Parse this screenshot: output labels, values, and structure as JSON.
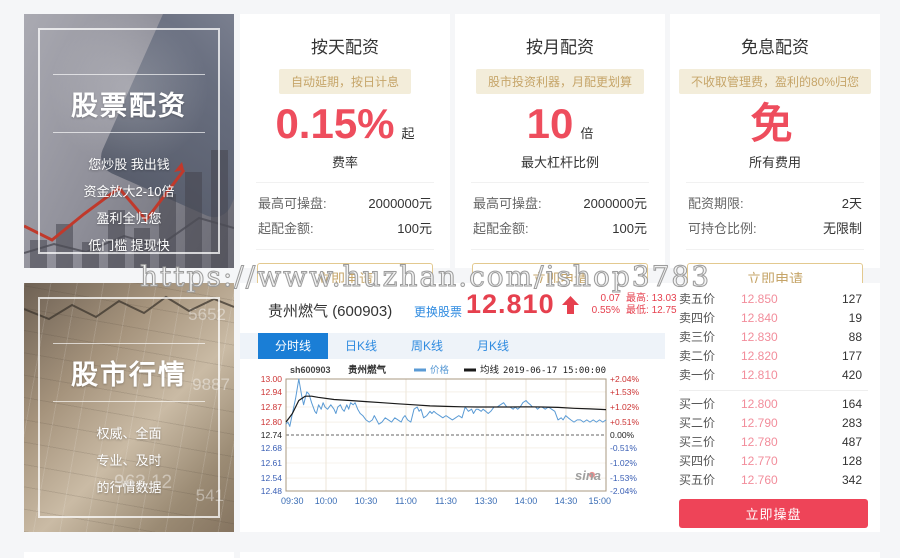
{
  "watermark": "https://www.huzhan.com/ishop3783",
  "banners": {
    "stock_financing": {
      "title": "股票配资",
      "lines": [
        "您炒股 我出钱",
        "资金放大2-10倍",
        "盈利全归您",
        "低门槛 提现快"
      ]
    },
    "market_quotes": {
      "title": "股市行情",
      "lines": [
        "权威、全面",
        "专业、及时",
        "的行情数据"
      ],
      "bg_numbers": [
        "5652",
        "9887",
        "963.12",
        "541"
      ]
    }
  },
  "plans": [
    {
      "title": "按天配资",
      "badge": "自动延期，按日计息",
      "value": "0.15%",
      "value_suffix": "起",
      "value_label": "费率",
      "rows": [
        {
          "label": "最高可操盘:",
          "value": "2000000元"
        },
        {
          "label": "起配金额:",
          "value": "100元"
        }
      ],
      "button": "立即申请"
    },
    {
      "title": "按月配资",
      "badge": "股市投资利器，月配更划算",
      "value": "10",
      "value_suffix": "倍",
      "value_label": "最大杠杆比例",
      "rows": [
        {
          "label": "最高可操盘:",
          "value": "2000000元"
        },
        {
          "label": "起配金额:",
          "value": "100元"
        }
      ],
      "button": "立即申请"
    },
    {
      "title": "免息配资",
      "badge": "不收取管理费，盈利的80%归您",
      "value": "免",
      "value_suffix": "",
      "value_label": "所有费用",
      "rows": [
        {
          "label": "配资期限:",
          "value": "2天"
        },
        {
          "label": "可持仓比例:",
          "value": "无限制"
        }
      ],
      "button": "立即申请"
    }
  ],
  "stock": {
    "name": "贵州燃气",
    "code": "(600903)",
    "change_stock_link": "更换股票",
    "price": "12.810",
    "change": "0.07",
    "change_pct": "0.55%",
    "high_label": "最高:",
    "high": "13.03",
    "low_label": "最低:",
    "low": "12.75",
    "tabs": [
      {
        "label": "分时线",
        "active": true
      },
      {
        "label": "日K线",
        "active": false
      },
      {
        "label": "周K线",
        "active": false
      },
      {
        "label": "月K线",
        "active": false
      }
    ],
    "operate_button": "立即操盘",
    "accent_red": "#e6404e",
    "accent_blue": "#1a7ed6"
  },
  "order_book": {
    "sell": [
      {
        "label": "卖五价",
        "price": "12.850",
        "volume": "127"
      },
      {
        "label": "卖四价",
        "price": "12.840",
        "volume": "19"
      },
      {
        "label": "卖三价",
        "price": "12.830",
        "volume": "88"
      },
      {
        "label": "卖二价",
        "price": "12.820",
        "volume": "177"
      },
      {
        "label": "卖一价",
        "price": "12.810",
        "volume": "420"
      }
    ],
    "buy": [
      {
        "label": "买一价",
        "price": "12.800",
        "volume": "164"
      },
      {
        "label": "买二价",
        "price": "12.790",
        "volume": "283"
      },
      {
        "label": "买三价",
        "price": "12.780",
        "volume": "487"
      },
      {
        "label": "买四价",
        "price": "12.770",
        "volume": "128"
      },
      {
        "label": "买五价",
        "price": "12.760",
        "volume": "342"
      }
    ]
  },
  "chart_data": {
    "type": "line",
    "title": "sh600903 贵州燃气 分时图",
    "symbol": "sh600903",
    "name": "贵州燃气",
    "timestamp": "2019-06-17 15:00:00",
    "legend": [
      {
        "name": "价格",
        "color": "#5b9bd5"
      },
      {
        "name": "均线",
        "color": "#1a1a1a"
      }
    ],
    "legend_position": "top",
    "grid": true,
    "watermark": "sina",
    "ylim": [
      12.48,
      13.0
    ],
    "baseline": 12.74,
    "y_left_ticks": [
      "13.00",
      "12.94",
      "12.87",
      "12.80",
      "12.74",
      "12.68",
      "12.61",
      "12.54",
      "12.48"
    ],
    "y_right_ticks": [
      "+2.04%",
      "+1.53%",
      "+1.02%",
      "+0.51%",
      "0.00%",
      "-0.51%",
      "-1.02%",
      "-1.53%",
      "-2.04%"
    ],
    "x_ticks": [
      "09:30",
      "10:00",
      "10:30",
      "11:00",
      "11:30",
      "13:30",
      "14:00",
      "14:30",
      "15:00"
    ],
    "xlabel": "",
    "ylabel": "",
    "price_series": [
      [
        0.0,
        12.79
      ],
      [
        0.006,
        12.8
      ],
      [
        0.012,
        12.78
      ],
      [
        0.02,
        12.84
      ],
      [
        0.03,
        12.91
      ],
      [
        0.04,
        13.0
      ],
      [
        0.048,
        12.93
      ],
      [
        0.055,
        12.88
      ],
      [
        0.065,
        12.94
      ],
      [
        0.072,
        12.93
      ],
      [
        0.08,
        12.89
      ],
      [
        0.09,
        12.85
      ],
      [
        0.095,
        12.84
      ],
      [
        0.102,
        12.88
      ],
      [
        0.11,
        12.86
      ],
      [
        0.116,
        12.89
      ],
      [
        0.122,
        12.87
      ],
      [
        0.13,
        12.86
      ],
      [
        0.14,
        12.88
      ],
      [
        0.15,
        12.86
      ],
      [
        0.156,
        12.84
      ],
      [
        0.162,
        12.87
      ],
      [
        0.17,
        12.88
      ],
      [
        0.176,
        12.86
      ],
      [
        0.182,
        12.85
      ],
      [
        0.19,
        12.88
      ],
      [
        0.196,
        12.86
      ],
      [
        0.202,
        12.89
      ],
      [
        0.21,
        12.88
      ],
      [
        0.216,
        12.89
      ],
      [
        0.224,
        12.86
      ],
      [
        0.232,
        12.84
      ],
      [
        0.24,
        12.83
      ],
      [
        0.25,
        12.81
      ],
      [
        0.26,
        12.8
      ],
      [
        0.27,
        12.81
      ],
      [
        0.276,
        12.83
      ],
      [
        0.283,
        12.81
      ],
      [
        0.29,
        12.79
      ],
      [
        0.3,
        12.8
      ],
      [
        0.31,
        12.82
      ],
      [
        0.32,
        12.81
      ],
      [
        0.33,
        12.8
      ],
      [
        0.34,
        12.82
      ],
      [
        0.35,
        12.81
      ],
      [
        0.36,
        12.8
      ],
      [
        0.366,
        12.82
      ],
      [
        0.372,
        12.83
      ],
      [
        0.38,
        12.81
      ],
      [
        0.39,
        12.8
      ],
      [
        0.4,
        12.86
      ],
      [
        0.41,
        12.87
      ],
      [
        0.416,
        12.85
      ],
      [
        0.422,
        12.86
      ],
      [
        0.43,
        12.82
      ],
      [
        0.44,
        12.83
      ],
      [
        0.45,
        12.85
      ],
      [
        0.456,
        12.84
      ],
      [
        0.462,
        12.85
      ],
      [
        0.47,
        12.84
      ],
      [
        0.48,
        12.83
      ],
      [
        0.49,
        12.82
      ],
      [
        0.5,
        12.83
      ],
      [
        0.51,
        12.82
      ],
      [
        0.52,
        12.81
      ],
      [
        0.53,
        12.82
      ],
      [
        0.54,
        12.83
      ],
      [
        0.55,
        12.82
      ],
      [
        0.56,
        12.87
      ],
      [
        0.57,
        12.85
      ],
      [
        0.58,
        12.86
      ],
      [
        0.586,
        12.84
      ],
      [
        0.594,
        12.86
      ],
      [
        0.6,
        12.86
      ],
      [
        0.61,
        12.85
      ],
      [
        0.616,
        12.86
      ],
      [
        0.624,
        12.85
      ],
      [
        0.632,
        12.84
      ],
      [
        0.64,
        12.85
      ],
      [
        0.65,
        12.87
      ],
      [
        0.66,
        12.87
      ],
      [
        0.67,
        12.88
      ],
      [
        0.68,
        12.89
      ],
      [
        0.69,
        12.87
      ],
      [
        0.7,
        12.87
      ],
      [
        0.71,
        12.86
      ],
      [
        0.716,
        12.87
      ],
      [
        0.724,
        12.86
      ],
      [
        0.732,
        12.87
      ],
      [
        0.74,
        12.89
      ],
      [
        0.75,
        12.9
      ],
      [
        0.756,
        12.89
      ],
      [
        0.764,
        12.88
      ],
      [
        0.77,
        12.87
      ],
      [
        0.78,
        12.87
      ],
      [
        0.786,
        12.86
      ],
      [
        0.794,
        12.87
      ],
      [
        0.8,
        12.87
      ],
      [
        0.81,
        12.86
      ],
      [
        0.82,
        12.87
      ],
      [
        0.83,
        12.86
      ],
      [
        0.84,
        12.85
      ],
      [
        0.85,
        12.81
      ],
      [
        0.86,
        12.82
      ],
      [
        0.866,
        12.81
      ],
      [
        0.874,
        12.83
      ],
      [
        0.882,
        12.82
      ],
      [
        0.89,
        12.81
      ],
      [
        0.9,
        12.8
      ],
      [
        0.91,
        12.81
      ],
      [
        0.92,
        12.81
      ],
      [
        0.93,
        12.8
      ],
      [
        0.94,
        12.81
      ],
      [
        0.95,
        12.8
      ],
      [
        0.96,
        12.81
      ],
      [
        0.97,
        12.8
      ],
      [
        0.98,
        12.81
      ],
      [
        0.99,
        12.8
      ],
      [
        1.0,
        12.81
      ]
    ],
    "avg_series": [
      [
        0.0,
        12.8
      ],
      [
        0.02,
        12.84
      ],
      [
        0.04,
        12.9
      ],
      [
        0.06,
        12.92
      ],
      [
        0.08,
        12.92
      ],
      [
        0.1,
        12.915
      ],
      [
        0.15,
        12.905
      ],
      [
        0.2,
        12.9
      ],
      [
        0.25,
        12.895
      ],
      [
        0.3,
        12.89
      ],
      [
        0.35,
        12.885
      ],
      [
        0.4,
        12.88
      ],
      [
        0.45,
        12.875
      ],
      [
        0.5,
        12.873
      ],
      [
        0.55,
        12.871
      ],
      [
        0.6,
        12.87
      ],
      [
        0.65,
        12.87
      ],
      [
        0.7,
        12.87
      ],
      [
        0.75,
        12.871
      ],
      [
        0.8,
        12.87
      ],
      [
        0.85,
        12.868
      ],
      [
        0.9,
        12.864
      ],
      [
        0.95,
        12.861
      ],
      [
        1.0,
        12.858
      ]
    ]
  }
}
